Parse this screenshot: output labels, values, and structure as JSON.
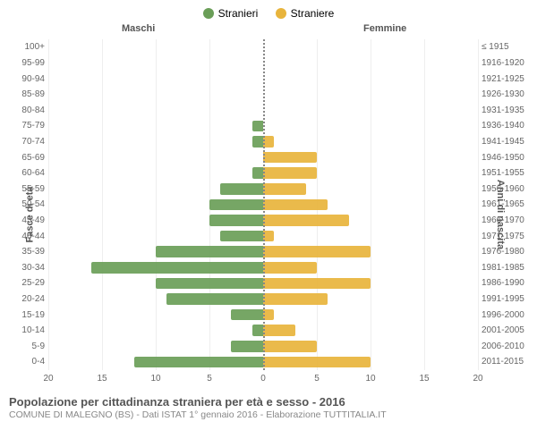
{
  "chart": {
    "type": "population-pyramid",
    "legend": {
      "male": {
        "label": "Stranieri",
        "color": "#6a9e58"
      },
      "female": {
        "label": "Straniere",
        "color": "#e8b43c"
      }
    },
    "headers": {
      "left": "Maschi",
      "right": "Femmine"
    },
    "y_left_axis_label": "Fasce di età",
    "y_right_axis_label": "Anni di nascita",
    "x_max": 20,
    "x_ticks": [
      20,
      15,
      10,
      5,
      0,
      5,
      10,
      15,
      20
    ],
    "grid_color": "#eeeeee",
    "center_line_color": "#888888",
    "background_color": "#ffffff",
    "bar_opacity": 0.92,
    "age_groups": [
      {
        "age": "100+",
        "birth": "≤ 1915",
        "male": 0,
        "female": 0
      },
      {
        "age": "95-99",
        "birth": "1916-1920",
        "male": 0,
        "female": 0
      },
      {
        "age": "90-94",
        "birth": "1921-1925",
        "male": 0,
        "female": 0
      },
      {
        "age": "85-89",
        "birth": "1926-1930",
        "male": 0,
        "female": 0
      },
      {
        "age": "80-84",
        "birth": "1931-1935",
        "male": 0,
        "female": 0
      },
      {
        "age": "75-79",
        "birth": "1936-1940",
        "male": 1,
        "female": 0
      },
      {
        "age": "70-74",
        "birth": "1941-1945",
        "male": 1,
        "female": 1
      },
      {
        "age": "65-69",
        "birth": "1946-1950",
        "male": 0,
        "female": 5
      },
      {
        "age": "60-64",
        "birth": "1951-1955",
        "male": 1,
        "female": 5
      },
      {
        "age": "55-59",
        "birth": "1956-1960",
        "male": 4,
        "female": 4
      },
      {
        "age": "50-54",
        "birth": "1961-1965",
        "male": 5,
        "female": 6
      },
      {
        "age": "45-49",
        "birth": "1966-1970",
        "male": 5,
        "female": 8
      },
      {
        "age": "40-44",
        "birth": "1971-1975",
        "male": 4,
        "female": 1
      },
      {
        "age": "35-39",
        "birth": "1976-1980",
        "male": 10,
        "female": 10
      },
      {
        "age": "30-34",
        "birth": "1981-1985",
        "male": 16,
        "female": 5
      },
      {
        "age": "25-29",
        "birth": "1986-1990",
        "male": 10,
        "female": 10
      },
      {
        "age": "20-24",
        "birth": "1991-1995",
        "male": 9,
        "female": 6
      },
      {
        "age": "15-19",
        "birth": "1996-2000",
        "male": 3,
        "female": 1
      },
      {
        "age": "10-14",
        "birth": "2001-2005",
        "male": 1,
        "female": 3
      },
      {
        "age": "5-9",
        "birth": "2006-2010",
        "male": 3,
        "female": 5
      },
      {
        "age": "0-4",
        "birth": "2011-2015",
        "male": 12,
        "female": 10
      }
    ]
  },
  "footer": {
    "title": "Popolazione per cittadinanza straniera per età e sesso - 2016",
    "subtitle": "COMUNE DI MALEGNO (BS) - Dati ISTAT 1° gennaio 2016 - Elaborazione TUTTITALIA.IT"
  }
}
